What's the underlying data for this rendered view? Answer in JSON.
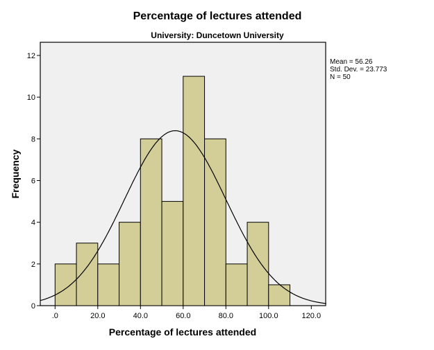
{
  "chart_data": {
    "type": "bar",
    "title": "Percentage of lectures attended",
    "subtitle": "University: Duncetown University",
    "xlabel": "Percentage of lectures attended",
    "ylabel": "Frequency",
    "bin_edges": [
      0,
      10,
      20,
      30,
      40,
      50,
      60,
      70,
      80,
      90,
      100,
      110
    ],
    "values": [
      2,
      3,
      2,
      4,
      8,
      5,
      11,
      8,
      2,
      4,
      1
    ],
    "xlim": [
      -7,
      127
    ],
    "ylim": [
      0,
      12.6
    ],
    "x_ticks": [
      0,
      20,
      40,
      60,
      80,
      100,
      120
    ],
    "x_tick_labels": [
      ".0",
      "20.0",
      "40.0",
      "60.0",
      "80.0",
      "100.0",
      "120.0"
    ],
    "y_ticks": [
      0,
      2,
      4,
      6,
      8,
      10,
      12
    ],
    "y_tick_labels": [
      "0",
      "2",
      "4",
      "6",
      "8",
      "10",
      "12"
    ],
    "normal_curve": {
      "mean": 56.26,
      "std_dev": 23.773,
      "n": 50
    },
    "stats_box": [
      "Mean = 56.26",
      "Std. Dev. = 23.773",
      "N = 50"
    ],
    "grid": false,
    "legend": "right",
    "colors": {
      "bar": "#d3ce97",
      "plot_bg": "#f0f0f0",
      "curve": "#000000"
    }
  }
}
